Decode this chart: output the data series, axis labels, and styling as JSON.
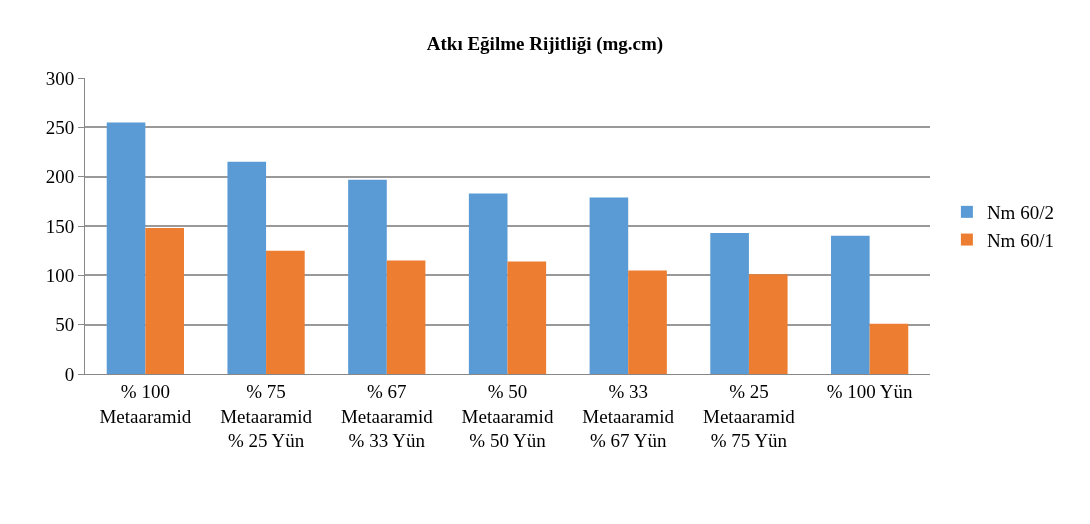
{
  "chart_data": {
    "type": "bar",
    "title": "Atkı Eğilme Rijitliği (mg.cm)",
    "categories": [
      "% 100\nMetaaramid",
      "% 75\nMetaaramid\n% 25 Yün",
      "% 67\nMetaaramid\n% 33 Yün",
      "% 50\nMetaaramid\n% 50 Yün",
      "% 33\nMetaaramid\n% 67 Yün",
      "% 25\nMetaaramid\n% 75 Yün",
      "% 100 Yün"
    ],
    "series": [
      {
        "name": "Nm 60/2",
        "color": "#5b9bd5",
        "values": [
          255,
          215,
          197,
          183,
          179,
          143,
          140
        ]
      },
      {
        "name": "Nm 60/1",
        "color": "#ed7d31",
        "values": [
          148,
          125,
          115,
          114,
          105,
          101,
          51
        ]
      }
    ],
    "ylim": [
      0,
      300
    ],
    "yticks": [
      0,
      50,
      100,
      150,
      200,
      250,
      300
    ],
    "grid": "y",
    "legend": "right"
  }
}
